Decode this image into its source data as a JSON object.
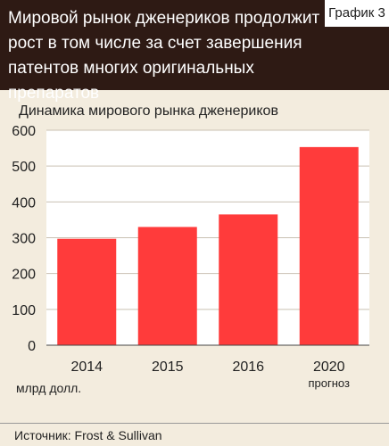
{
  "header": {
    "title": "Мировой рынок дженериков продолжит рост в том числе за счет завершения патентов многих оригинальных препаратов",
    "tag": "График 3"
  },
  "chart_data": {
    "type": "bar",
    "title": "Динамика мирового рынка дженериков",
    "categories": [
      "2014",
      "2015",
      "2016",
      "2020"
    ],
    "category_notes": [
      "",
      "",
      "",
      "прогноз"
    ],
    "values": [
      297,
      330,
      365,
      553
    ],
    "ylim": [
      0,
      600
    ],
    "yticks": [
      0,
      100,
      200,
      300,
      400,
      500,
      600
    ],
    "unit_label": "млрд долл.",
    "grid": true,
    "bar_color": "#ff3b3b"
  },
  "footer": {
    "source": "Источник: Frost & Sullivan"
  }
}
